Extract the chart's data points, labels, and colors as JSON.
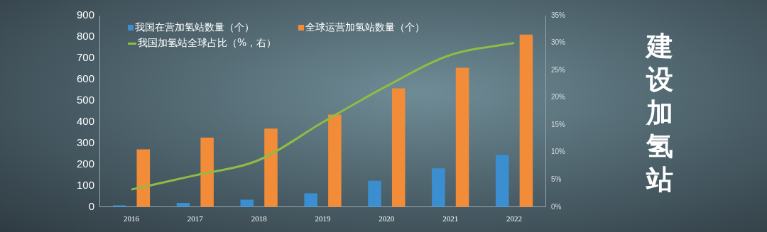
{
  "chart_data": {
    "type": "bar",
    "title": "建设加氢站",
    "categories": [
      "2016",
      "2017",
      "2018",
      "2019",
      "2020",
      "2021",
      "2022"
    ],
    "series": [
      {
        "name": "我国在营加氢站数量（个）",
        "color": "#3b8fd0",
        "values": [
          8,
          19,
          34,
          64,
          124,
          182,
          245
        ]
      },
      {
        "name": "全球运营加氢站数量（个）",
        "color": "#f28c38",
        "values": [
          271,
          326,
          369,
          435,
          558,
          655,
          811
        ]
      },
      {
        "name": "我国加氢站全球占比（%，右）",
        "type": "line",
        "axis": "y2",
        "color": "#8fbc45",
        "values": [
          3.2,
          5.8,
          8.6,
          15.5,
          22.1,
          27.8,
          30.0
        ]
      }
    ],
    "ylim": [
      0,
      900
    ],
    "yticks": [
      0,
      100,
      200,
      300,
      400,
      500,
      600,
      700,
      800,
      900
    ],
    "y2lim": [
      0,
      35
    ],
    "y2ticks": [
      {
        "value": 0,
        "label": "0%"
      },
      {
        "value": 5,
        "label": "5%"
      },
      {
        "value": 10,
        "label": "10%"
      },
      {
        "value": 15,
        "label": "15%"
      },
      {
        "value": 20,
        "label": "20%"
      },
      {
        "value": 25,
        "label": "25%"
      },
      {
        "value": 30,
        "label": "30%"
      },
      {
        "value": 35,
        "label": "35%"
      }
    ],
    "grid": false,
    "legend": "top left",
    "marker": "none"
  }
}
